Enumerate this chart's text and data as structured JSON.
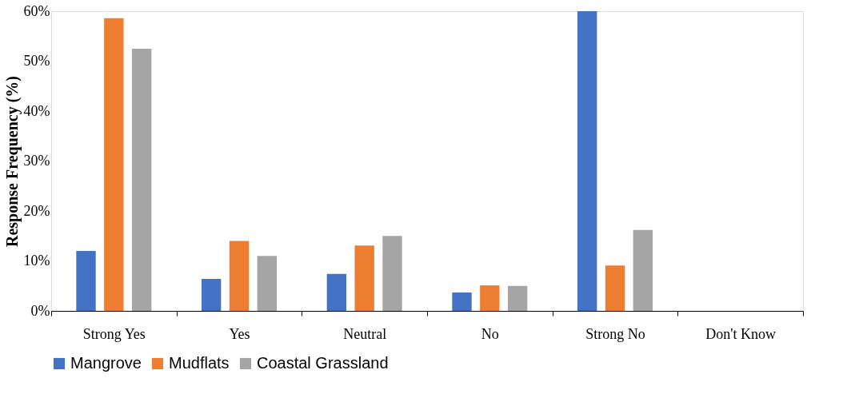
{
  "chart_data": {
    "type": "bar",
    "ylabel": "Response Frequency (%)",
    "categories": [
      "Strong Yes",
      "Yes",
      "Neutral",
      "No",
      "Strong No",
      "Don't Know"
    ],
    "series": [
      {
        "name": "Mangrove",
        "color": "#4472c4",
        "values": [
          12,
          6.4,
          7.4,
          3.7,
          60,
          0
        ]
      },
      {
        "name": "Mudflats",
        "color": "#ed7d31",
        "values": [
          58.6,
          14,
          13.1,
          5.1,
          9.1,
          0
        ]
      },
      {
        "name": "Coastal Grassland",
        "color": "#a5a5a5",
        "values": [
          52.5,
          11,
          15,
          5,
          16.2,
          0
        ]
      }
    ],
    "ylim": [
      0,
      60
    ],
    "yticks": [
      {
        "value": 0,
        "label": "0%"
      },
      {
        "value": 10,
        "label": "10%"
      },
      {
        "value": 20,
        "label": "20%"
      },
      {
        "value": 30,
        "label": "30%"
      },
      {
        "value": 40,
        "label": "40%"
      },
      {
        "value": 50,
        "label": "50%"
      },
      {
        "value": 60,
        "label": "60%"
      }
    ],
    "grid": false,
    "legend": "bottom"
  }
}
